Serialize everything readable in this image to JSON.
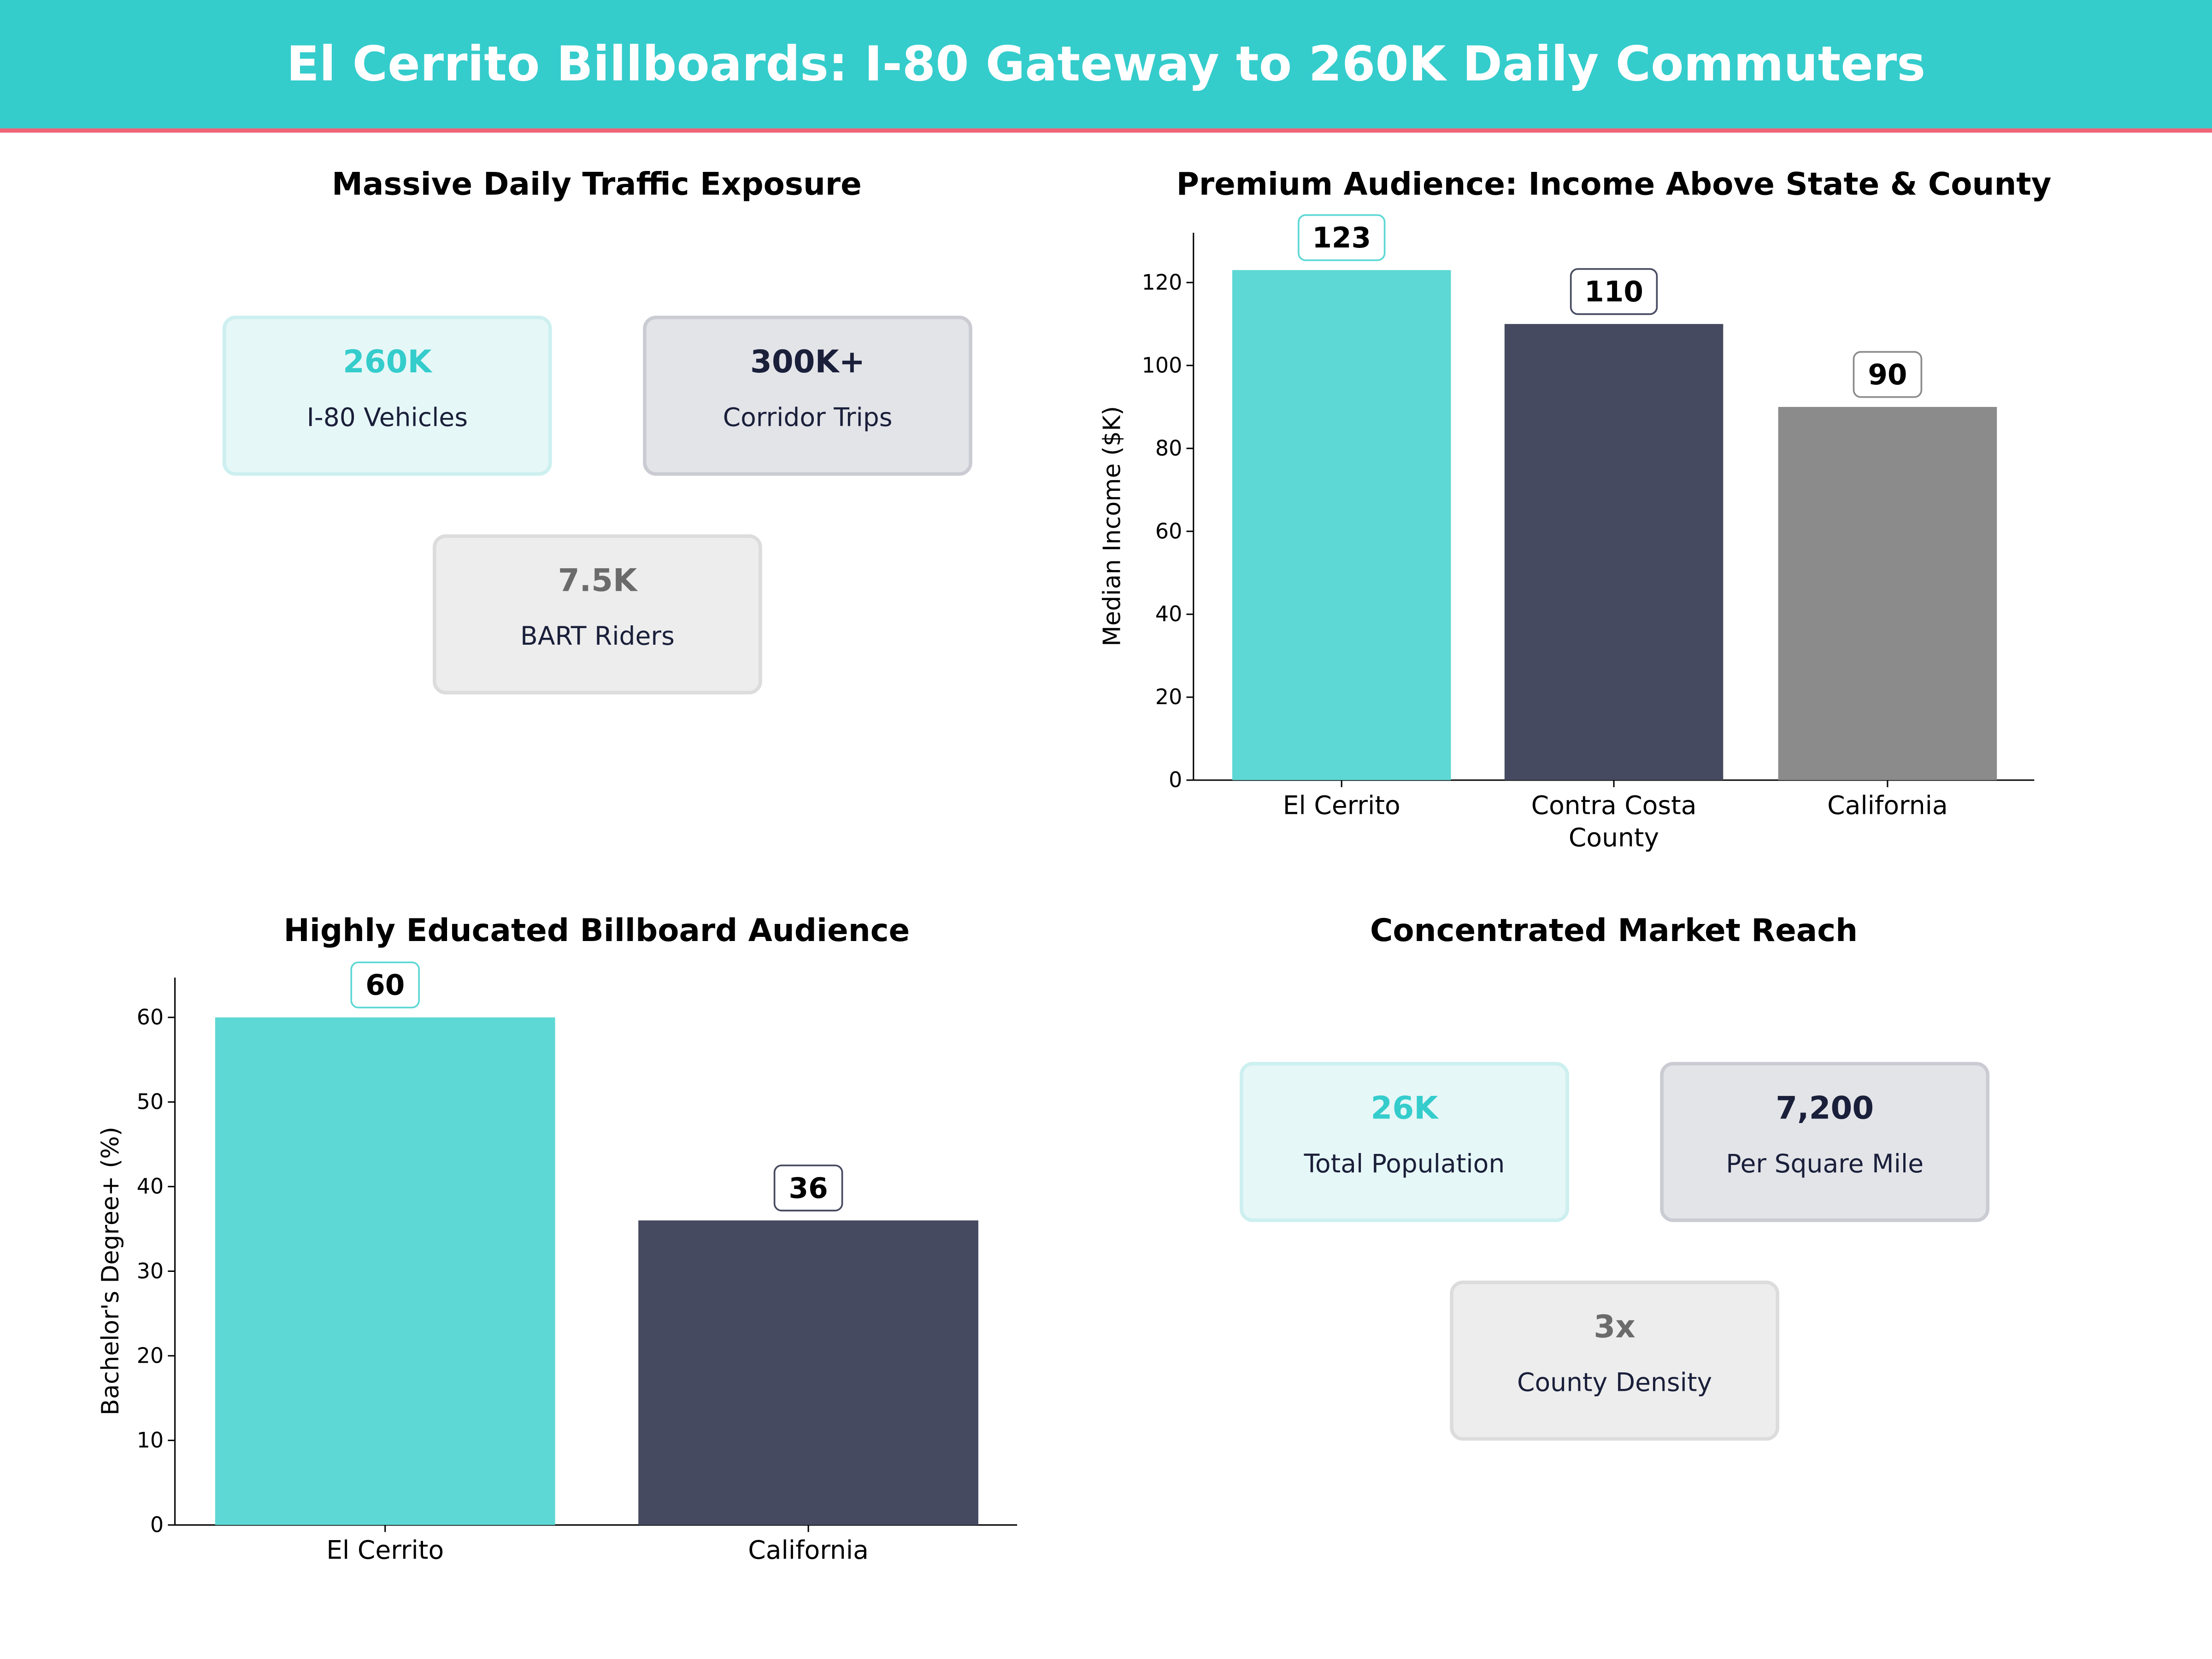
{
  "header": {
    "title": "El Cerrito Billboards: I-80 Gateway to 260K Daily Commuters",
    "bg_color": "#35CCCC",
    "accent_line_color": "#EF6478"
  },
  "traffic_panel": {
    "title": "Massive Daily Traffic Exposure",
    "cards": [
      {
        "value": "260K",
        "label": "I-80  Vehicles",
        "value_color": "#35CCCC",
        "bg": "#E6F7F7",
        "border": "#CDEFEF"
      },
      {
        "value": "300K+",
        "label": "Corridor Trips",
        "value_color": "#1A1F3A",
        "bg": "#E3E4E8",
        "border": "#CBCBD3"
      },
      {
        "value": "7.5K",
        "label": "BART  Riders",
        "value_color": "#6B6B6B",
        "bg": "#EDEDED",
        "border": "#DCDCDC"
      }
    ]
  },
  "market_panel": {
    "title": "Concentrated Market Reach",
    "cards": [
      {
        "value": "26K",
        "label": "Total Population",
        "value_color": "#35CCCC",
        "bg": "#E6F7F7",
        "border": "#CDEFEF"
      },
      {
        "value": "7,200",
        "label": "Per Square Mile",
        "value_color": "#1A1F3A",
        "bg": "#E3E4E8",
        "border": "#CBCBD3"
      },
      {
        "value": "3x",
        "label": "County Density",
        "value_color": "#6B6B6B",
        "bg": "#EDEDED",
        "border": "#DCDCDC"
      }
    ]
  },
  "chart_data": [
    {
      "type": "bar",
      "title": "Premium Audience: Income Above State & County",
      "ylabel": "Median Income ($K)",
      "xlabel": "",
      "categories": [
        "El Cerrito",
        "Contra Costa\nCounty",
        "California"
      ],
      "values": [
        123,
        110,
        90
      ],
      "value_labels": [
        "123",
        "110",
        "90"
      ],
      "colors": [
        "#5DD8D5",
        "#464A60",
        "#8B8B8B"
      ],
      "label_borders": [
        "#5DD8D5",
        "#464A60",
        "#8B8B8B"
      ],
      "yticks": [
        0,
        20,
        40,
        60,
        80,
        100,
        120
      ],
      "ylim": [
        0,
        132
      ],
      "grid": false
    },
    {
      "type": "bar",
      "title": "Highly Educated Billboard Audience",
      "ylabel": "Bachelor's Degree+ (%)",
      "xlabel": "",
      "categories": [
        "El Cerrito",
        "California"
      ],
      "values": [
        60,
        36
      ],
      "value_labels": [
        "60",
        "36"
      ],
      "colors": [
        "#5DD8D5",
        "#464A60"
      ],
      "label_borders": [
        "#5DD8D5",
        "#464A60"
      ],
      "yticks": [
        0,
        10,
        20,
        30,
        40,
        50,
        60
      ],
      "ylim": [
        0,
        64.7
      ],
      "grid": false
    }
  ]
}
